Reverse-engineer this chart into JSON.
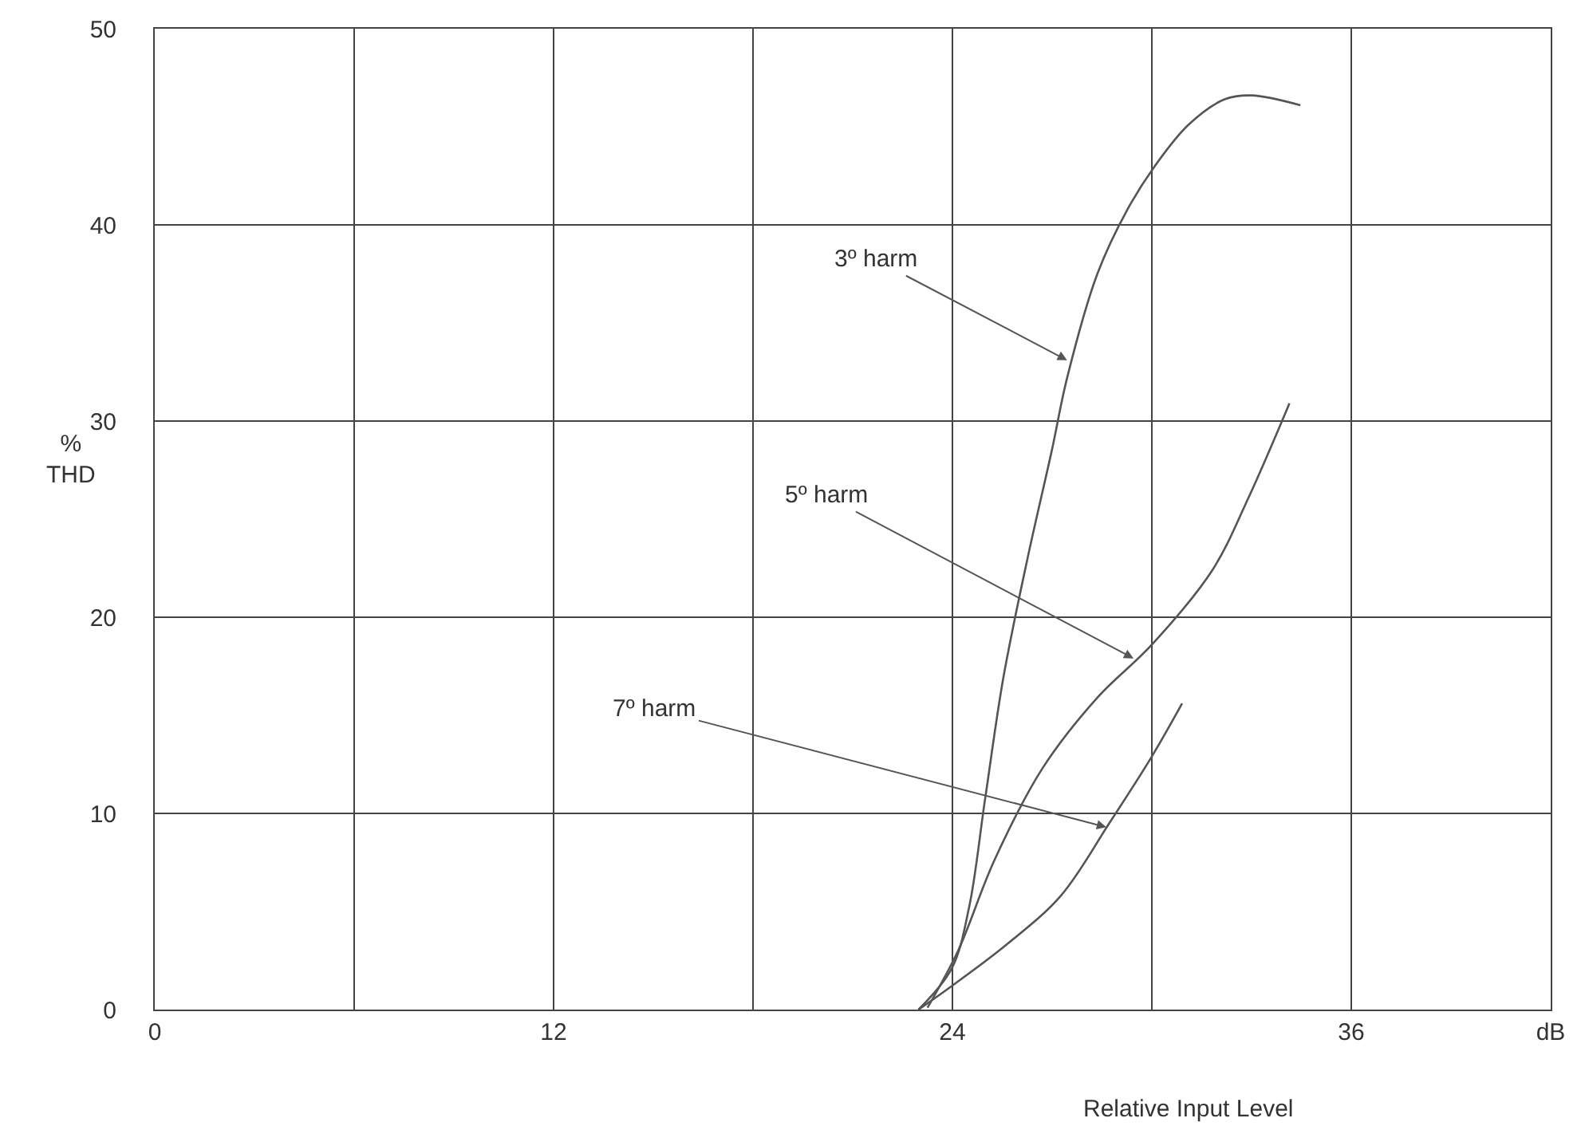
{
  "chart_data": {
    "type": "line",
    "xlabel": "Relative Input Level",
    "ylabel": "%\nTHD",
    "xlim": [
      0,
      42
    ],
    "xticks": [
      0,
      {
        "value": 6,
        "label": null
      },
      12,
      {
        "value": 18,
        "label": null
      },
      24,
      {
        "value": 30,
        "label": null
      },
      36,
      {
        "value": 42,
        "label": "dB"
      }
    ],
    "ylim": [
      0,
      50
    ],
    "yticks": [
      0,
      10,
      20,
      30,
      40,
      50
    ],
    "grid": true,
    "marker": "none",
    "line_style": "solid",
    "series": [
      {
        "color": "#555555",
        "x": [
          22.98,
          23.98,
          24.5,
          24.98,
          25.53,
          26.26,
          26.99,
          27.45,
          28.36,
          29.27,
          30.09,
          31.1,
          32.19,
          33.0,
          34.47
        ],
        "values": [
          0,
          2.1,
          5.2,
          10.7,
          16.9,
          23.0,
          28.5,
          32.2,
          37.5,
          40.8,
          43.0,
          45.1,
          46.4,
          46.6,
          46.1
        ]
      },
      {
        "color": "#555555",
        "x": [
          23.25,
          24.17,
          25.26,
          26.71,
          28.36,
          30.0,
          31.82,
          32.91,
          34.14
        ],
        "values": [
          0.1,
          3.0,
          7.6,
          12.3,
          15.9,
          18.6,
          22.4,
          26.1,
          30.9
        ]
      },
      {
        "color": "#555555",
        "x": [
          22.98,
          23.98,
          25.62,
          27.26,
          28.72,
          30.0,
          30.91
        ],
        "values": [
          0,
          1.2,
          3.3,
          5.8,
          9.5,
          12.9,
          15.6
        ]
      }
    ],
    "annotations": [
      {
        "text": "3º harm",
        "x": 27.45,
        "y": 33.1
      },
      {
        "text": "5º harm",
        "x": 29.45,
        "y": 17.9
      },
      {
        "text": "7º harm",
        "x": 28.63,
        "y": 9.3
      }
    ]
  }
}
